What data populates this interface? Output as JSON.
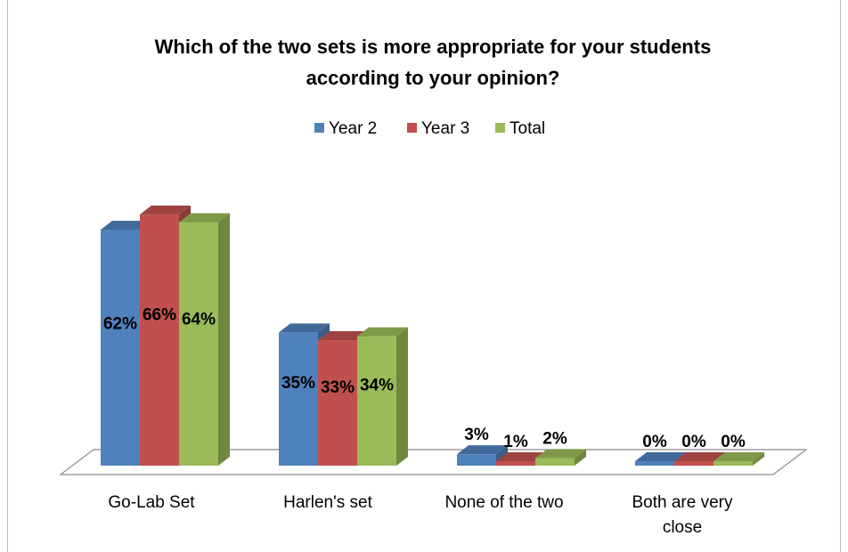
{
  "chart_data": {
    "type": "bar",
    "title_lines": [
      "Which of the two sets is more appropriate for your students",
      "according to your opinion?"
    ],
    "categories": [
      "Go-Lab Set",
      "Harlen's set",
      "None of the two",
      "Both are very close"
    ],
    "series": [
      {
        "name": "Year 2",
        "values": [
          62,
          35,
          3,
          0
        ],
        "labels": [
          "62%",
          "35%",
          "3%",
          "0%"
        ]
      },
      {
        "name": "Year 3",
        "values": [
          66,
          33,
          1,
          0
        ],
        "labels": [
          "66%",
          "33%",
          "1%",
          "0%"
        ]
      },
      {
        "name": "Total",
        "values": [
          64,
          34,
          2,
          0
        ],
        "labels": [
          "64%",
          "34%",
          "2%",
          "0%"
        ]
      }
    ],
    "colors": {
      "Year 2": "#4f81bd",
      "Year 3": "#c0504d",
      "Total": "#9bbb59"
    },
    "ylim": [
      0,
      70
    ],
    "grid": false,
    "legend_position": "top"
  }
}
